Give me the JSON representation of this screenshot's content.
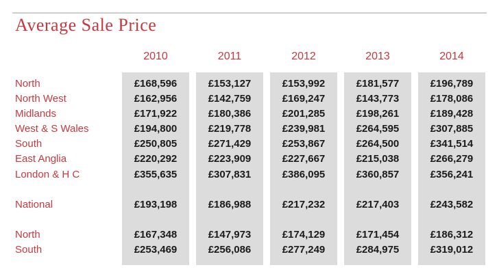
{
  "title": "Average Sale Price",
  "chart_data": {
    "type": "table",
    "title": "Average Sale Price",
    "columns": [
      "2010",
      "2011",
      "2012",
      "2013",
      "2014"
    ],
    "rows": [
      {
        "label": "North",
        "values": [
          "£168,596",
          "£153,127",
          "£153,992",
          "£181,577",
          "£196,789"
        ]
      },
      {
        "label": "North West",
        "values": [
          "£162,956",
          "£142,759",
          "£169,247",
          "£143,773",
          "£178,086"
        ]
      },
      {
        "label": "Midlands",
        "values": [
          "£171,922",
          "£180,386",
          "£201,285",
          "£198,261",
          "£189,428"
        ]
      },
      {
        "label": "West & S Wales",
        "values": [
          "£194,800",
          "£219,778",
          "£239,981",
          "£264,595",
          "£307,885"
        ]
      },
      {
        "label": "South",
        "values": [
          "£250,805",
          "£271,429",
          "£253,867",
          "£264,500",
          "£341,514"
        ]
      },
      {
        "label": "East Anglia",
        "values": [
          "£220,292",
          "£223,909",
          "£227,667",
          "£215,038",
          "£266,279"
        ]
      },
      {
        "label": "London & H C",
        "values": [
          "£355,635",
          "£307,831",
          "£386,095",
          "£360,857",
          "£356,241"
        ]
      },
      {
        "label": "National",
        "values": [
          "£193,198",
          "£186,988",
          "£217,232",
          "£217,403",
          "£243,582"
        ]
      },
      {
        "label": "North",
        "values": [
          "£167,348",
          "£147,973",
          "£174,129",
          "£171,454",
          "£186,312"
        ]
      },
      {
        "label": "South",
        "values": [
          "£253,469",
          "£256,086",
          "£277,249",
          "£284,975",
          "£319,012"
        ]
      }
    ]
  },
  "colors": {
    "accent": "#c9383e",
    "column_shade": "#dcdcdc",
    "rule": "#cfcfcf",
    "value_text": "#1a1a1a"
  }
}
